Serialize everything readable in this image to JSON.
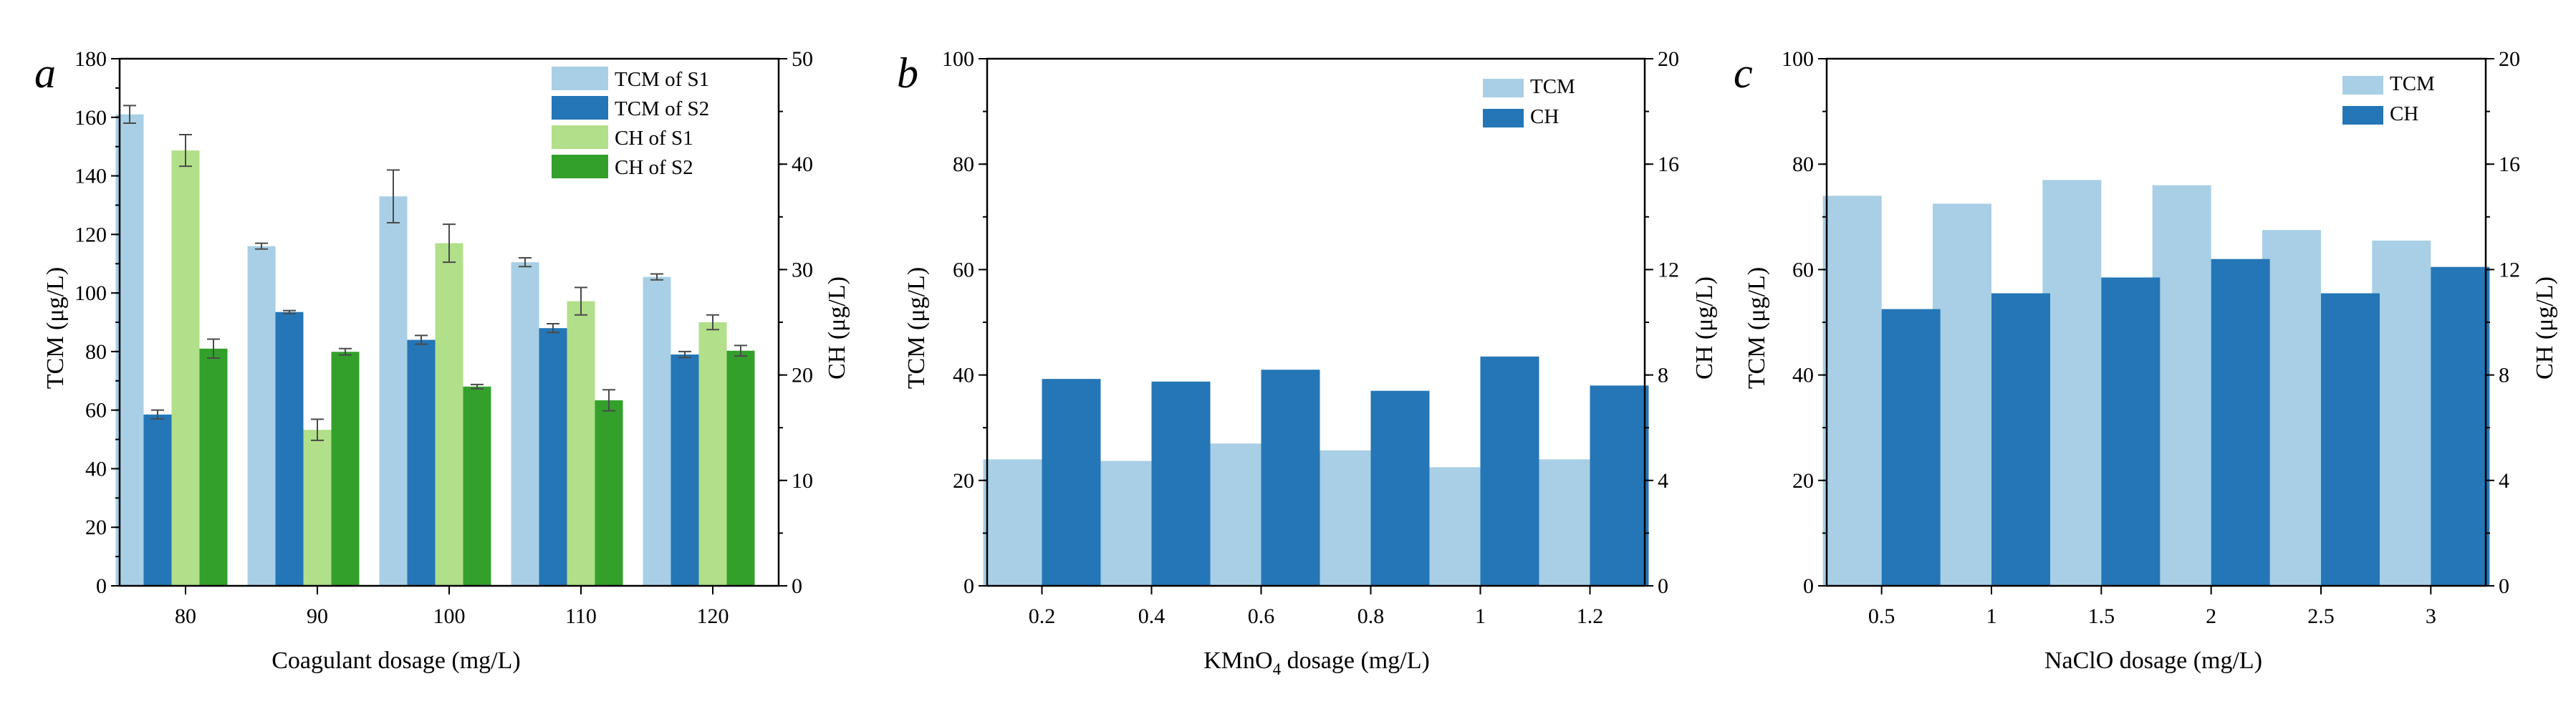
{
  "figure": {
    "colors": {
      "tcm_light": "#a8cfe5",
      "ch_blue": "#2476b6",
      "s1_green": "#b2df8a",
      "s2_green": "#33a02c",
      "axis": "#000000"
    }
  },
  "chart_data": [
    {
      "id": "a",
      "type": "bar",
      "panel_letter": "a",
      "xlabel": "Coagulant dosage (mg/L)",
      "ylabel_left": "TCM (μg/L)",
      "ylabel_right": "CH (μg/L)",
      "categories": [
        "80",
        "90",
        "100",
        "110",
        "120"
      ],
      "ylim_left": [
        0,
        180
      ],
      "yticks_left": [
        0,
        20,
        40,
        60,
        80,
        100,
        120,
        140,
        160,
        180
      ],
      "ylim_right": [
        0,
        50
      ],
      "yticks_right": [
        0,
        10,
        20,
        30,
        40,
        50
      ],
      "legend_position": "top-right",
      "series": [
        {
          "name": "TCM of S1",
          "axis": "left",
          "color": "#a8cfe5",
          "values": [
            161,
            116,
            133,
            110.5,
            105.5
          ],
          "errors": [
            3,
            1,
            9,
            1.5,
            1
          ]
        },
        {
          "name": "TCM of S2",
          "axis": "left",
          "color": "#2476b6",
          "values": [
            58.5,
            93.5,
            84,
            88,
            79
          ],
          "errors": [
            1.5,
            0.5,
            1.5,
            1.5,
            1
          ]
        },
        {
          "name": "CH of S1",
          "axis": "right",
          "color": "#b2df8a",
          "values": [
            41.3,
            14.8,
            32.5,
            27,
            25
          ],
          "errors": [
            1.5,
            1,
            1.8,
            1.3,
            0.7
          ]
        },
        {
          "name": "CH of S2",
          "axis": "right",
          "color": "#33a02c",
          "values": [
            22.5,
            22.2,
            18.9,
            17.6,
            22.3
          ],
          "errors": [
            0.9,
            0.3,
            0.2,
            1,
            0.5
          ]
        }
      ]
    },
    {
      "id": "b",
      "type": "bar",
      "panel_letter": "b",
      "xlabel": "KMnO",
      "xlabel_sub": "4",
      "xlabel_rest": " dosage (mg/L)",
      "ylabel_left": "TCM (μg/L)",
      "ylabel_right": "CH (μg/L)",
      "categories": [
        "0.2",
        "0.4",
        "0.6",
        "0.8",
        "1",
        "1.2"
      ],
      "ylim_left": [
        0,
        100
      ],
      "yticks_left": [
        0,
        20,
        40,
        60,
        80,
        100
      ],
      "ylim_right": [
        0,
        20
      ],
      "yticks_right": [
        0,
        4,
        8,
        12,
        16,
        20
      ],
      "legend_position": "top-right",
      "series": [
        {
          "name": "TCM",
          "axis": "left",
          "color": "#a8cfe5",
          "values": [
            24,
            23.7,
            27,
            25.7,
            22.5,
            24
          ]
        },
        {
          "name": "CH",
          "axis": "right",
          "color": "#2476b6",
          "values": [
            7.85,
            7.75,
            8.2,
            7.4,
            8.7,
            7.6
          ]
        }
      ]
    },
    {
      "id": "c",
      "type": "bar",
      "panel_letter": "c",
      "xlabel": "NaClO dosage (mg/L)",
      "ylabel_left": "TCM (μg/L)",
      "ylabel_right": "CH (μg/L)",
      "categories": [
        "0.5",
        "1",
        "1.5",
        "2",
        "2.5",
        "3"
      ],
      "ylim_left": [
        0,
        100
      ],
      "yticks_left": [
        0,
        20,
        40,
        60,
        80,
        100
      ],
      "ylim_right": [
        0,
        20
      ],
      "yticks_right": [
        0,
        4,
        8,
        12,
        16,
        20
      ],
      "legend_position": "top-right",
      "series": [
        {
          "name": "TCM",
          "axis": "left",
          "color": "#a8cfe5",
          "values": [
            74,
            72.5,
            77,
            76,
            67.5,
            65.5
          ]
        },
        {
          "name": "CH",
          "axis": "right",
          "color": "#2476b6",
          "values": [
            10.5,
            11.1,
            11.7,
            12.4,
            11.1,
            12.1
          ]
        }
      ]
    }
  ]
}
